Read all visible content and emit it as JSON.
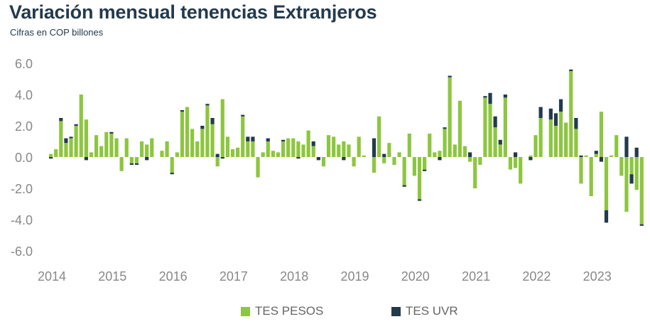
{
  "title": "Variación mensual tenencias Extranjeros",
  "subtitle": "Cifras en COP billones",
  "colors": {
    "pesos": "#8dc63f",
    "uvr": "#243a4c",
    "axis_text": "#888888",
    "title": "#243a4c"
  },
  "legend": [
    {
      "label": "TES PESOS",
      "color": "#8dc63f"
    },
    {
      "label": "TES UVR",
      "color": "#243a4c"
    }
  ],
  "chart_data": {
    "type": "bar",
    "stacked": true,
    "title": "Variación mensual tenencias Extranjeros",
    "subtitle": "Cifras en COP billones",
    "ylim": [
      -6,
      6
    ],
    "y_ticks": [
      "6.0",
      "4.0",
      "2.0",
      "0.0",
      "-2.0",
      "-4.0",
      "-6.0"
    ],
    "x_labels": [
      "2014",
      "2015",
      "2016",
      "2017",
      "2018",
      "2019",
      "2020",
      "2021",
      "2022",
      "2023"
    ],
    "x_start": "2014-01",
    "grid": false,
    "legend_position": "bottom",
    "series": [
      {
        "name": "TES PESOS",
        "values": [
          0.2,
          0.5,
          2.3,
          0.9,
          1.2,
          2.0,
          4.0,
          2.4,
          0.3,
          1.4,
          0.7,
          1.6,
          1.5,
          1.2,
          -0.9,
          1.2,
          -0.4,
          -0.4,
          1.0,
          0.8,
          1.2,
          0.0,
          0.4,
          1.0,
          -1.0,
          0.3,
          2.9,
          3.2,
          1.8,
          1.0,
          1.8,
          3.3,
          2.1,
          -0.6,
          3.7,
          1.3,
          0.5,
          0.6,
          2.6,
          1.0,
          1.0,
          -1.3,
          0.3,
          1.0,
          0.4,
          0.3,
          1.0,
          1.2,
          1.2,
          1.0,
          0.8,
          1.7,
          0.7,
          0.0,
          -0.6,
          1.4,
          1.3,
          0.8,
          1.0,
          0.8,
          -0.6,
          1.3,
          0.1,
          0.0,
          -1.0,
          2.6,
          -0.4,
          0.9,
          -0.5,
          0.3,
          -1.8,
          1.5,
          -1.2,
          -2.7,
          -0.8,
          1.5,
          0.3,
          0.4,
          1.8,
          5.1,
          0.8,
          3.6,
          0.7,
          -0.3,
          -2.0,
          -0.5,
          3.8,
          3.4,
          1.9,
          0.8,
          3.8,
          -0.8,
          -0.7,
          -1.7,
          0.0,
          0.1,
          1.4,
          2.5,
          0.0,
          2.4,
          2.0,
          2.9,
          2.2,
          5.5,
          1.8,
          -1.7,
          0.1,
          -2.5,
          0.2,
          2.9,
          -3.4,
          0.1,
          1.4,
          -1.2,
          -3.5,
          -1.1,
          -2.1,
          -4.3
        ]
      },
      {
        "name": "TES UVR",
        "values": [
          -0.1,
          0.0,
          0.2,
          0.3,
          0.1,
          0.1,
          0.0,
          -0.2,
          0.0,
          0.0,
          0.0,
          0.0,
          0.1,
          0.0,
          0.0,
          0.0,
          -0.1,
          -0.1,
          0.0,
          -0.2,
          0.0,
          0.0,
          0.0,
          0.0,
          -0.1,
          0.0,
          0.1,
          0.0,
          0.0,
          0.0,
          0.2,
          0.1,
          0.4,
          0.2,
          -0.1,
          0.0,
          0.0,
          0.0,
          0.1,
          0.3,
          0.3,
          0.0,
          0.0,
          0.2,
          0.0,
          0.0,
          0.1,
          0.0,
          0.0,
          -0.1,
          0.0,
          0.0,
          0.3,
          -0.2,
          0.0,
          0.0,
          0.0,
          0.0,
          -0.2,
          0.0,
          0.0,
          0.0,
          0.0,
          0.0,
          1.2,
          0.0,
          0.2,
          0.0,
          0.0,
          0.0,
          -0.1,
          0.0,
          0.0,
          -0.1,
          -0.1,
          0.0,
          0.0,
          -0.2,
          0.1,
          0.1,
          0.0,
          0.0,
          0.0,
          0.3,
          0.0,
          0.0,
          0.1,
          0.7,
          0.7,
          0.3,
          0.2,
          0.0,
          0.3,
          0.0,
          0.0,
          -0.2,
          0.0,
          0.7,
          0.0,
          0.7,
          0.8,
          0.8,
          0.0,
          0.1,
          0.7,
          0.1,
          0.0,
          0.0,
          0.2,
          -0.3,
          -0.8,
          0.0,
          0.0,
          0.0,
          1.3,
          -0.6,
          0.6,
          -0.1
        ]
      }
    ]
  }
}
